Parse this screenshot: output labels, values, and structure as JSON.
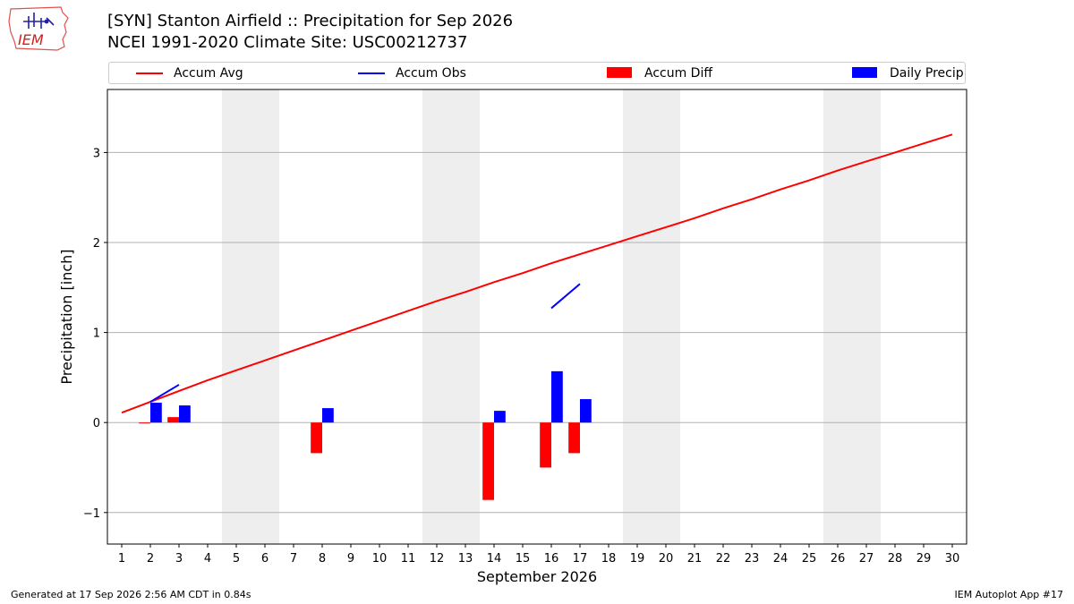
{
  "header": {
    "title_line1": "[SYN] Stanton Airfield :: Precipitation for Sep 2026",
    "title_line2": "NCEI 1991-2020 Climate Site: USC00212737",
    "logo_text": "IEM"
  },
  "footer": {
    "generated": "Generated at 17 Sep 2026 2:56 AM CDT in 0.84s",
    "app": "IEM Autoplot App #17"
  },
  "colors": {
    "avg": "#ff0000",
    "obs": "#0000ff",
    "diff": "#ff0000",
    "daily": "#0000ff",
    "weekend": "#eeeeee",
    "grid": "#b0b0b0"
  },
  "chart_data": {
    "type": "bar",
    "xlabel": "September 2026",
    "ylabel": "Precipitation [inch]",
    "xlim": [
      0.5,
      30.5
    ],
    "ylim": [
      -1.35,
      3.7
    ],
    "yticks": [
      -1,
      0,
      1,
      2,
      3
    ],
    "ytick_labels": [
      "−1",
      "0",
      "1",
      "2",
      "3"
    ],
    "x": [
      1,
      2,
      3,
      4,
      5,
      6,
      7,
      8,
      9,
      10,
      11,
      12,
      13,
      14,
      15,
      16,
      17,
      18,
      19,
      20,
      21,
      22,
      23,
      24,
      25,
      26,
      27,
      28,
      29,
      30
    ],
    "grid": "horizontal",
    "legend_position": "top",
    "weekend_spans": [
      [
        4.5,
        6.5
      ],
      [
        11.5,
        13.5
      ],
      [
        18.5,
        20.5
      ],
      [
        25.5,
        27.5
      ]
    ],
    "legend": [
      "Accum Avg",
      "Accum Obs",
      "Accum Diff",
      "Daily Precip"
    ],
    "series": [
      {
        "name": "Accum Avg",
        "type": "line",
        "x": [
          1,
          2,
          3,
          4,
          5,
          6,
          7,
          8,
          9,
          10,
          11,
          12,
          13,
          14,
          15,
          16,
          17,
          18,
          19,
          20,
          21,
          22,
          23,
          24,
          25,
          26,
          27,
          28,
          29,
          30
        ],
        "values": [
          0.11,
          0.23,
          0.35,
          0.47,
          0.58,
          0.69,
          0.8,
          0.91,
          1.02,
          1.13,
          1.24,
          1.35,
          1.45,
          1.56,
          1.66,
          1.77,
          1.87,
          1.97,
          2.07,
          2.17,
          2.27,
          2.38,
          2.48,
          2.59,
          2.69,
          2.8,
          2.9,
          3.0,
          3.1,
          3.2
        ]
      },
      {
        "name": "Accum Obs",
        "type": "line",
        "segments": [
          {
            "x": [
              2,
              3
            ],
            "values": [
              0.23,
              0.42
            ]
          },
          {
            "x": [
              16,
              17
            ],
            "values": [
              1.27,
              1.54
            ]
          }
        ]
      },
      {
        "name": "Accum Diff",
        "type": "bar",
        "x": [
          2,
          3,
          8,
          14,
          16,
          17
        ],
        "values": [
          -0.01,
          0.06,
          -0.34,
          -0.86,
          -0.5,
          -0.34
        ]
      },
      {
        "name": "Daily Precip",
        "type": "bar",
        "x": [
          2,
          3,
          8,
          14,
          16,
          17
        ],
        "values": [
          0.22,
          0.19,
          0.16,
          0.13,
          0.57,
          0.26
        ]
      }
    ]
  }
}
